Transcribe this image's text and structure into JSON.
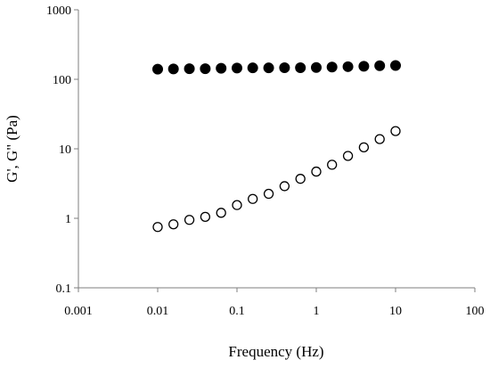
{
  "chart_data": {
    "type": "scatter",
    "title": "",
    "xlabel": "Frequency (Hz)",
    "ylabel": "G', G\" (Pa)",
    "xscale": "log",
    "yscale": "log",
    "xlim": [
      0.001,
      100
    ],
    "ylim": [
      0.1,
      1000
    ],
    "grid": false,
    "legend": "none",
    "x_tick_labels": [
      "0.001",
      "0.01",
      "0.1",
      "1",
      "10",
      "100"
    ],
    "y_tick_labels": [
      "0.1",
      "1",
      "10",
      "100",
      "1000"
    ],
    "x_ticks": [
      0.001,
      0.01,
      0.1,
      1,
      10,
      100
    ],
    "y_ticks": [
      0.1,
      1,
      10,
      100,
      1000
    ],
    "series": [
      {
        "marker": "filled-circle",
        "color": "#000000",
        "x": [
          0.01,
          0.0158,
          0.0251,
          0.0398,
          0.0631,
          0.1,
          0.158,
          0.251,
          0.398,
          0.631,
          1,
          1.58,
          2.51,
          3.98,
          6.31,
          10
        ],
        "y": [
          140,
          141,
          142,
          142,
          144,
          145,
          146,
          146,
          147,
          147,
          148,
          150,
          152,
          154,
          157,
          158
        ]
      },
      {
        "marker": "open-circle",
        "color": "#000000",
        "x": [
          0.01,
          0.0158,
          0.0251,
          0.0398,
          0.0631,
          0.1,
          0.158,
          0.251,
          0.398,
          0.631,
          1,
          1.58,
          2.51,
          3.98,
          6.31,
          10
        ],
        "y": [
          0.75,
          0.82,
          0.95,
          1.05,
          1.2,
          1.55,
          1.9,
          2.25,
          2.9,
          3.7,
          4.7,
          5.9,
          7.9,
          10.5,
          13.8,
          18
        ]
      }
    ]
  }
}
